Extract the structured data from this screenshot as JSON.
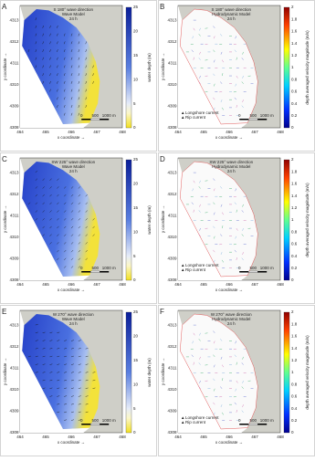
{
  "panels": [
    {
      "letter": "A",
      "title_lines": [
        "S 180° wave direction",
        "Wave Model",
        "24 h"
      ],
      "colorbar_label": "water depth (m)",
      "colorbar_ticks": [
        "0",
        "5",
        "10",
        "15",
        "20",
        "25"
      ],
      "kind": "wave"
    },
    {
      "letter": "B",
      "title_lines": [
        "S 180° wave direction",
        "Hydrodynamic Model",
        "24 h"
      ],
      "colorbar_label": "depth averaged velocity magnitude (m/s)",
      "colorbar_ticks": [
        "0",
        "0.2",
        "0.4",
        "0.6",
        "0.8",
        "1",
        "1.2",
        "1.4",
        "1.6",
        "1.8",
        "2"
      ],
      "kind": "hydro"
    },
    {
      "letter": "C",
      "title_lines": [
        "SW 225° wave direction",
        "Wave Model",
        "24 h"
      ],
      "colorbar_label": "water depth (m)",
      "colorbar_ticks": [
        "0",
        "5",
        "10",
        "15",
        "20",
        "25"
      ],
      "kind": "wave"
    },
    {
      "letter": "D",
      "title_lines": [
        "SW 225° wave direction",
        "Hydrodynamic Model",
        "24 h"
      ],
      "colorbar_label": "depth averaged velocity magnitude (m/s)",
      "colorbar_ticks": [
        "0",
        "0.2",
        "0.4",
        "0.6",
        "0.8",
        "1",
        "1.2",
        "1.4",
        "1.6",
        "1.8",
        "2"
      ],
      "kind": "hydro"
    },
    {
      "letter": "E",
      "title_lines": [
        "W 270° wave direction",
        "Wave Model",
        "24 h"
      ],
      "colorbar_label": "water depth (m)",
      "colorbar_ticks": [
        "0",
        "5",
        "10",
        "15",
        "20",
        "25"
      ],
      "kind": "wave"
    },
    {
      "letter": "F",
      "title_lines": [
        "W 270° wave direction",
        "Hydrodynamic Model",
        "24 h"
      ],
      "colorbar_label": "depth averaged velocity magnitude (m/s)",
      "colorbar_ticks": [
        "0",
        "0.2",
        "0.4",
        "0.6",
        "0.8",
        "1",
        "1.2",
        "1.4",
        "1.6",
        "1.8",
        "2"
      ],
      "kind": "hydro"
    }
  ],
  "x_ticks": [
    "464",
    "465",
    "466",
    "467",
    "468"
  ],
  "y_ticks": [
    "4308",
    "4309",
    "4310",
    "4311",
    "4312",
    "4313"
  ],
  "x_label": "x coordinate →",
  "y_label": "y coordinate →",
  "scale_bar": [
    "0",
    "500",
    "1000 m"
  ],
  "legend": [
    "Longshore current",
    "Rip current"
  ]
}
